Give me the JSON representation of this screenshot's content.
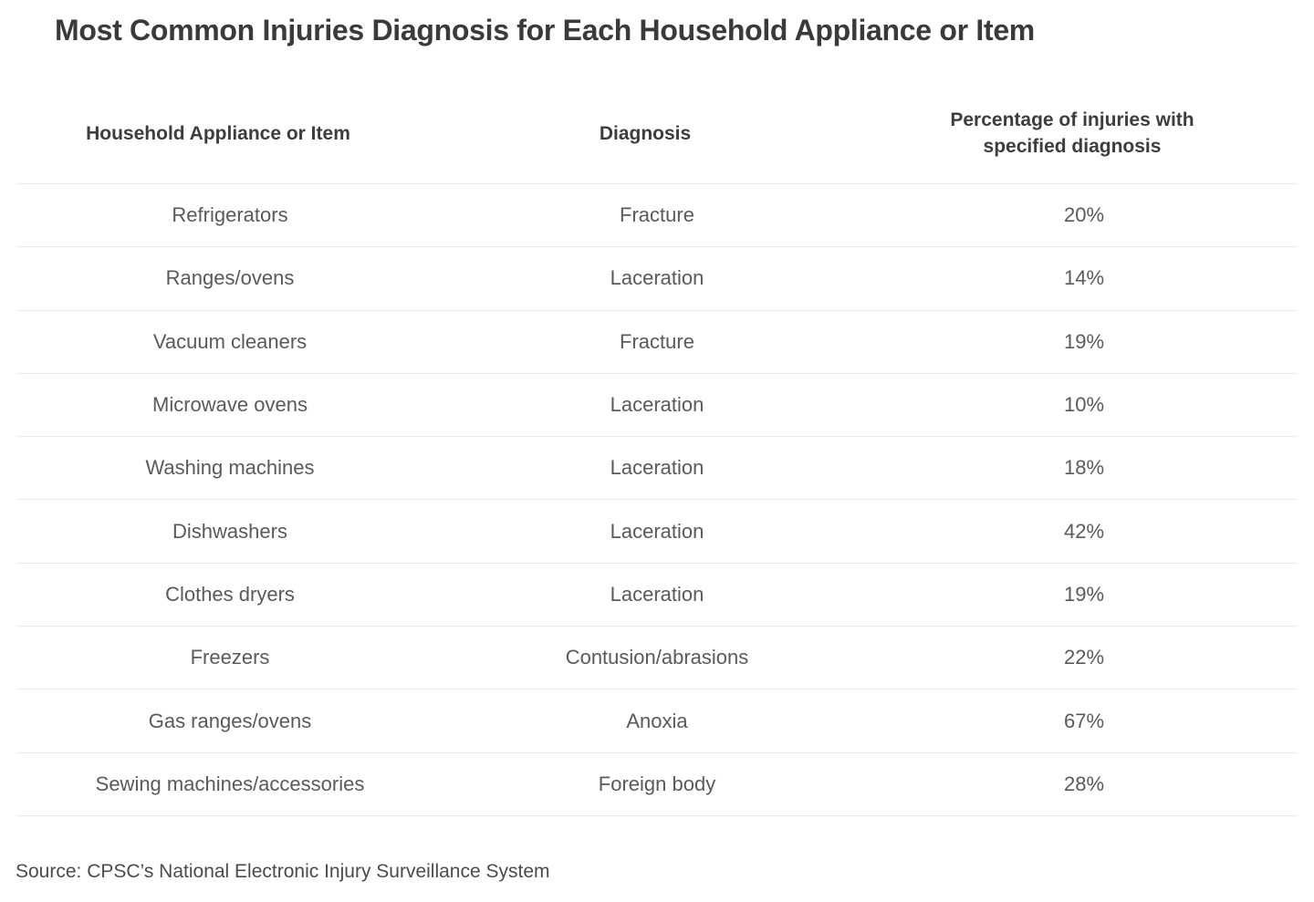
{
  "title": "Most Common Injuries Diagnosis for Each Household Appliance or Item",
  "source": "Source: CPSC’s National Electronic Injury Surveillance System",
  "colors": {
    "background": "#ffffff",
    "title_text": "#3a3a3a",
    "header_text": "#3d3d3d",
    "cell_text": "#595a5c",
    "separator": "#eaeaea",
    "source_text": "#4b4b4b"
  },
  "table": {
    "columns": [
      "Household Appliance or Item",
      "Diagnosis",
      "Percentage of injuries with specified diagnosis"
    ],
    "rows": [
      {
        "appliance": "Refrigerators",
        "diagnosis": "Fracture",
        "percentage": "20%"
      },
      {
        "appliance": "Ranges/ovens",
        "diagnosis": "Laceration",
        "percentage": "14%"
      },
      {
        "appliance": "Vacuum cleaners",
        "diagnosis": "Fracture",
        "percentage": "19%"
      },
      {
        "appliance": "Microwave ovens",
        "diagnosis": "Laceration",
        "percentage": "10%"
      },
      {
        "appliance": "Washing machines",
        "diagnosis": "Laceration",
        "percentage": "18%"
      },
      {
        "appliance": "Dishwashers",
        "diagnosis": "Laceration",
        "percentage": "42%"
      },
      {
        "appliance": "Clothes dryers",
        "diagnosis": "Laceration",
        "percentage": "19%"
      },
      {
        "appliance": "Freezers",
        "diagnosis": "Contusion/abrasions",
        "percentage": "22%"
      },
      {
        "appliance": "Gas ranges/ovens",
        "diagnosis": "Anoxia",
        "percentage": "67%"
      },
      {
        "appliance": "Sewing machines/accessories",
        "diagnosis": "Foreign body",
        "percentage": "28%"
      }
    ]
  },
  "chart_data": {
    "type": "table",
    "title": "Most Common Injuries Diagnosis for Each Household Appliance or Item",
    "columns": [
      "Household Appliance or Item",
      "Diagnosis",
      "Percentage of injuries with specified diagnosis"
    ],
    "rows": [
      [
        "Refrigerators",
        "Fracture",
        "20%"
      ],
      [
        "Ranges/ovens",
        "Laceration",
        "14%"
      ],
      [
        "Vacuum cleaners",
        "Fracture",
        "19%"
      ],
      [
        "Microwave ovens",
        "Laceration",
        "10%"
      ],
      [
        "Washing machines",
        "Laceration",
        "18%"
      ],
      [
        "Dishwashers",
        "Laceration",
        "42%"
      ],
      [
        "Clothes dryers",
        "Laceration",
        "19%"
      ],
      [
        "Freezers",
        "Contusion/abrasions",
        "22%"
      ],
      [
        "Gas ranges/ovens",
        "Anoxia",
        "67%"
      ],
      [
        "Sewing machines/accessories",
        "Foreign body",
        "28%"
      ]
    ],
    "percent_values": [
      20,
      14,
      19,
      10,
      18,
      42,
      19,
      22,
      67,
      28
    ],
    "source": "Source: CPSC’s National Electronic Injury Surveillance System"
  }
}
